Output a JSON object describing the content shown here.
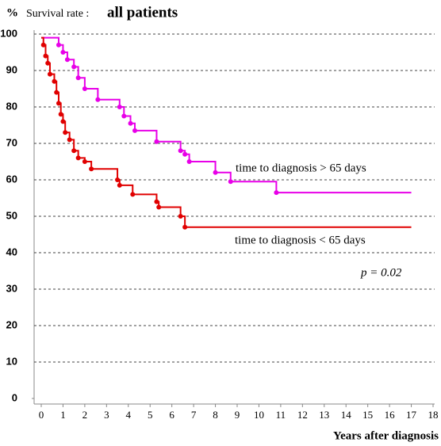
{
  "chart_data": {
    "type": "step",
    "y_label": "%",
    "title": "Survival rate :",
    "title_bold": "all patients",
    "x_label": "Years after diagnosis",
    "xlim": [
      0,
      18
    ],
    "ylim": [
      0,
      100
    ],
    "xticks": [
      0,
      1,
      2,
      3,
      4,
      5,
      6,
      7,
      8,
      9,
      10,
      11,
      12,
      13,
      14,
      15,
      16,
      17,
      18
    ],
    "yticks": [
      0,
      10,
      20,
      30,
      40,
      50,
      60,
      70,
      80,
      90,
      100
    ],
    "grid": true,
    "series": [
      {
        "name": "time to diagnosis > 65 days",
        "color": "#e800e8",
        "x": [
          0,
          0.8,
          1.0,
          1.2,
          1.5,
          1.7,
          2.0,
          2.6,
          3.6,
          3.8,
          4.1,
          4.3,
          5.3,
          6.4,
          6.6,
          6.8,
          8.0,
          8.7,
          10.8,
          17
        ],
        "values": [
          99,
          97,
          95,
          93,
          91,
          88,
          85,
          82,
          80,
          77.5,
          75.5,
          73.5,
          70.5,
          68,
          67,
          65,
          62,
          59.5,
          56.5,
          56.5
        ]
      },
      {
        "name": "time to diagnosis < 65 days",
        "color": "#e00000",
        "x": [
          0,
          0.1,
          0.2,
          0.3,
          0.4,
          0.6,
          0.7,
          0.8,
          0.9,
          1.0,
          1.1,
          1.3,
          1.5,
          1.7,
          2.0,
          2.3,
          3.5,
          3.6,
          4.2,
          5.3,
          5.4,
          6.4,
          6.6,
          17
        ],
        "values": [
          99,
          97,
          94,
          92,
          89,
          87,
          84,
          81,
          78,
          76,
          73,
          71,
          68,
          66,
          65,
          63,
          60,
          58.5,
          56,
          54,
          52.5,
          50,
          47,
          47
        ]
      }
    ],
    "annotation": "p = 0.02"
  }
}
